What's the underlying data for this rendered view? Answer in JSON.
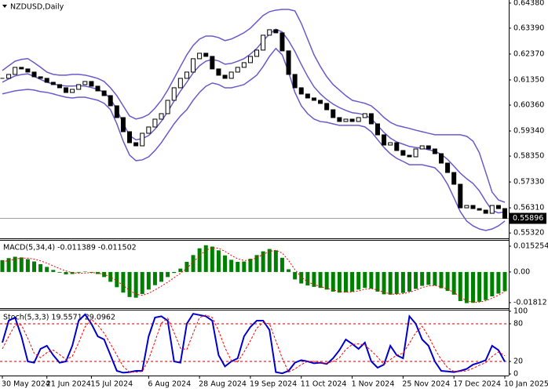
{
  "chart_data": [
    {
      "type": "candlestick",
      "title": "NZDUSD,Daily",
      "categories": [
        "30 May 2024",
        null,
        null,
        null,
        null,
        null,
        null,
        "21 Jun 2024",
        null,
        null,
        null,
        null,
        null,
        null,
        "15 Jul 2024",
        null,
        null,
        null,
        null,
        null,
        null,
        null,
        null,
        "6 Aug 2024",
        null,
        null,
        null,
        null,
        null,
        null,
        null,
        "28 Aug 2024",
        null,
        null,
        null,
        null,
        null,
        null,
        null,
        "19 Sep 2024",
        null,
        null,
        null,
        null,
        null,
        null,
        null,
        "11 Oct 2024",
        null,
        null,
        null,
        null,
        null,
        null,
        null,
        "1 Nov 2024",
        null,
        null,
        null,
        null,
        null,
        null,
        null,
        "25 Nov 2024",
        null,
        null,
        null,
        null,
        null,
        null,
        null,
        "17 Dec 2024",
        null,
        null,
        null,
        null,
        null,
        null,
        null,
        "10 Jan 2025"
      ],
      "close": [
        0.61413,
        0.61567,
        0.61846,
        0.61784,
        0.6166,
        0.61475,
        0.61413,
        0.61258,
        0.61166,
        0.61042,
        0.60856,
        0.6098,
        0.61166,
        0.61289,
        0.61104,
        0.60918,
        0.60733,
        0.60331,
        0.59867,
        0.59311,
        0.58878,
        0.58754,
        0.59249,
        0.59496,
        0.59805,
        0.60022,
        0.60547,
        0.61042,
        0.61413,
        0.6166,
        0.62186,
        0.62402,
        0.62278,
        0.61784,
        0.61536,
        0.61413,
        0.6166,
        0.61846,
        0.62031,
        0.62278,
        0.62526,
        0.63113,
        0.63329,
        0.63206,
        0.62495,
        0.61567,
        0.61042,
        0.60795,
        0.6064,
        0.60547,
        0.60424,
        0.60176,
        0.59867,
        0.59713,
        0.59805,
        0.59713,
        0.59867,
        0.60022,
        0.5962,
        0.59187,
        0.58785,
        0.58878,
        0.58569,
        0.58383,
        0.58322,
        0.58631,
        0.58754,
        0.58631,
        0.58445,
        0.58074,
        0.57703,
        0.5724,
        0.56312,
        0.56405,
        0.56281,
        0.5622,
        0.56096,
        0.56405,
        0.56281,
        0.55896
      ],
      "up_color": "#ffffff",
      "down_color": "#000000",
      "bands": {
        "color": "#6a5acd",
        "upper": [
          0.6172,
          0.6191,
          0.6209,
          0.6216,
          0.6219,
          0.6203,
          0.6185,
          0.6166,
          0.6157,
          0.6154,
          0.6154,
          0.6157,
          0.6157,
          0.6154,
          0.6148,
          0.6141,
          0.6129,
          0.6104,
          0.6073,
          0.6033,
          0.5993,
          0.5981,
          0.5987,
          0.5999,
          0.6024,
          0.6055,
          0.6095,
          0.6141,
          0.6188,
          0.6234,
          0.6271,
          0.6296,
          0.6308,
          0.6308,
          0.6302,
          0.629,
          0.6296,
          0.6308,
          0.6321,
          0.6339,
          0.6364,
          0.6389,
          0.6404,
          0.641,
          0.6413,
          0.6413,
          0.6407,
          0.6358,
          0.6296,
          0.6234,
          0.6188,
          0.6148,
          0.6117,
          0.6095,
          0.6073,
          0.6055,
          0.6049,
          0.6043,
          0.6033,
          0.6012,
          0.5987,
          0.5968,
          0.5956,
          0.595,
          0.5944,
          0.5937,
          0.5931,
          0.5925,
          0.5919,
          0.5919,
          0.5919,
          0.5919,
          0.5919,
          0.5913,
          0.5894,
          0.5848,
          0.5771,
          0.5693,
          0.5662,
          0.5653
        ],
        "middle": [
          0.6126,
          0.6139,
          0.6151,
          0.6156,
          0.6159,
          0.6149,
          0.6137,
          0.6126,
          0.6119,
          0.6114,
          0.6111,
          0.6111,
          0.6112,
          0.6111,
          0.6105,
          0.6098,
          0.6086,
          0.6061,
          0.6018,
          0.5964,
          0.5916,
          0.5899,
          0.5904,
          0.5916,
          0.5941,
          0.5972,
          0.601,
          0.6052,
          0.6091,
          0.6126,
          0.6163,
          0.6191,
          0.6209,
          0.6216,
          0.621,
          0.6197,
          0.62,
          0.6209,
          0.6219,
          0.6237,
          0.6259,
          0.6289,
          0.6316,
          0.6335,
          0.6324,
          0.629,
          0.6247,
          0.6196,
          0.6149,
          0.6108,
          0.608,
          0.6058,
          0.604,
          0.6026,
          0.6015,
          0.6006,
          0.6003,
          0.5997,
          0.5982,
          0.5956,
          0.5928,
          0.5906,
          0.5891,
          0.5882,
          0.5873,
          0.5869,
          0.5866,
          0.586,
          0.5854,
          0.5842,
          0.5822,
          0.5795,
          0.5768,
          0.5746,
          0.5727,
          0.5698,
          0.5657,
          0.5621,
          0.5611,
          0.5616
        ],
        "lower": [
          0.608,
          0.6086,
          0.6092,
          0.6095,
          0.6098,
          0.6095,
          0.6089,
          0.6086,
          0.608,
          0.6073,
          0.6067,
          0.6064,
          0.6067,
          0.6067,
          0.6061,
          0.6055,
          0.6043,
          0.6018,
          0.5962,
          0.5894,
          0.5839,
          0.5817,
          0.582,
          0.5832,
          0.5857,
          0.5888,
          0.5925,
          0.5962,
          0.5993,
          0.6018,
          0.6055,
          0.6086,
          0.611,
          0.6123,
          0.6117,
          0.6104,
          0.6104,
          0.611,
          0.6117,
          0.6135,
          0.6154,
          0.6188,
          0.6228,
          0.6259,
          0.6234,
          0.6166,
          0.6086,
          0.6033,
          0.6002,
          0.5981,
          0.5971,
          0.5968,
          0.5962,
          0.5956,
          0.5956,
          0.5956,
          0.5956,
          0.595,
          0.5931,
          0.59,
          0.5869,
          0.5844,
          0.5826,
          0.5814,
          0.5801,
          0.5801,
          0.5801,
          0.5795,
          0.5789,
          0.5764,
          0.5724,
          0.5671,
          0.5616,
          0.5579,
          0.556,
          0.5548,
          0.5542,
          0.5548,
          0.556,
          0.5579
        ]
      },
      "last_price": 0.55896,
      "ylim": [
        0.5514,
        0.645
      ],
      "yticks": [
        {
          "value": 0.6438,
          "label": "0.64380"
        },
        {
          "value": 0.6339,
          "label": "0.63390"
        },
        {
          "value": 0.6237,
          "label": "0.62370"
        },
        {
          "value": 0.6135,
          "label": "0.61350"
        },
        {
          "value": 0.6036,
          "label": "0.60360"
        },
        {
          "value": 0.5934,
          "label": "0.59340"
        },
        {
          "value": 0.5835,
          "label": "0.58350"
        },
        {
          "value": 0.5733,
          "label": "0.57330"
        },
        {
          "value": 0.5631,
          "label": "0.56310"
        },
        {
          "value": 0.5532,
          "label": "0.55320"
        }
      ]
    },
    {
      "type": "macd",
      "title": "MACD(5,34,4) -0.011389 -0.011502",
      "histogram": {
        "color": "#008000",
        "values": [
          0.007,
          0.0082,
          0.009,
          0.0086,
          0.0076,
          0.0062,
          0.0046,
          0.003,
          0.0012,
          -0.0004,
          -0.0014,
          -0.0012,
          -0.0004,
          0.0002,
          -0.0004,
          -0.0012,
          -0.003,
          -0.0058,
          -0.009,
          -0.0122,
          -0.0148,
          -0.0152,
          -0.013,
          -0.0104,
          -0.0078,
          -0.0058,
          -0.003,
          -0.0006,
          0.002,
          0.006,
          0.01,
          0.014,
          0.0158,
          0.015,
          0.0128,
          0.0098,
          0.0072,
          0.006,
          0.0062,
          0.0078,
          0.01,
          0.0122,
          0.0136,
          0.0128,
          0.0084,
          0.0016,
          -0.0044,
          -0.0068,
          -0.008,
          -0.0088,
          -0.0094,
          -0.0104,
          -0.0116,
          -0.0122,
          -0.012,
          -0.0116,
          -0.0104,
          -0.0094,
          -0.0098,
          -0.0116,
          -0.0132,
          -0.0134,
          -0.013,
          -0.0124,
          -0.0116,
          -0.01,
          -0.0082,
          -0.0076,
          -0.008,
          -0.0096,
          -0.0112,
          -0.0134,
          -0.0172,
          -0.0184,
          -0.0182,
          -0.0176,
          -0.0166,
          -0.0144,
          -0.0128,
          -0.011389
        ]
      },
      "signal": {
        "color": "#ff0000",
        "values": [
          0.006,
          0.0068,
          0.0076,
          0.0082,
          0.0082,
          0.0076,
          0.0066,
          0.0052,
          0.0036,
          0.002,
          0.0006,
          -0.0004,
          -0.0008,
          -0.0006,
          -0.0004,
          -0.0006,
          -0.0014,
          -0.003,
          -0.0052,
          -0.008,
          -0.0108,
          -0.0132,
          -0.0138,
          -0.0126,
          -0.0106,
          -0.0084,
          -0.006,
          -0.0034,
          -0.0008,
          0.0022,
          0.0058,
          0.0096,
          0.0128,
          0.0144,
          0.014,
          0.0122,
          0.0098,
          0.0078,
          0.0068,
          0.007,
          0.0084,
          0.0104,
          0.0122,
          0.0128,
          0.0112,
          0.0068,
          0.0014,
          -0.003,
          -0.0058,
          -0.0074,
          -0.0086,
          -0.0096,
          -0.0106,
          -0.0116,
          -0.012,
          -0.0118,
          -0.0112,
          -0.0102,
          -0.0098,
          -0.0106,
          -0.012,
          -0.013,
          -0.0132,
          -0.0128,
          -0.012,
          -0.0108,
          -0.0092,
          -0.0082,
          -0.008,
          -0.0088,
          -0.0102,
          -0.012,
          -0.0148,
          -0.017,
          -0.018,
          -0.0178,
          -0.017,
          -0.0155,
          -0.0138,
          -0.011502
        ]
      },
      "ylim": [
        -0.0209,
        0.0185
      ],
      "yticks": [
        0.015254,
        {
          "value": 0,
          "label": "0.00"
        },
        -0.018121
      ]
    },
    {
      "type": "line",
      "title": "Stoch(5,3,3) 19.5571 29.0962",
      "series": [
        {
          "color": "#0000cd",
          "values": [
            50,
            85,
            90,
            60,
            20,
            18,
            40,
            45,
            30,
            18,
            20,
            45,
            85,
            95,
            80,
            60,
            55,
            30,
            5,
            2,
            3,
            5,
            5,
            60,
            90,
            92,
            85,
            20,
            18,
            80,
            96,
            94,
            92,
            85,
            30,
            12,
            20,
            25,
            60,
            75,
            85,
            85,
            70,
            3,
            1,
            5,
            18,
            22,
            20,
            17,
            18,
            16,
            25,
            38,
            55,
            48,
            40,
            50,
            20,
            10,
            15,
            45,
            30,
            25,
            92,
            80,
            55,
            45,
            20,
            5,
            4,
            3,
            5,
            8,
            15,
            18,
            22,
            45,
            38,
            19.5571
          ]
        },
        {
          "color": "#ff0000",
          "dashed": true,
          "values": [
            40,
            60,
            78,
            78,
            57,
            33,
            26,
            34,
            38,
            31,
            23,
            28,
            50,
            75,
            87,
            78,
            65,
            48,
            30,
            12,
            3,
            3,
            4,
            23,
            52,
            81,
            89,
            66,
            41,
            39,
            65,
            90,
            94,
            90,
            69,
            42,
            21,
            19,
            35,
            53,
            73,
            82,
            80,
            53,
            25,
            3,
            8,
            15,
            20,
            20,
            18,
            17,
            20,
            26,
            39,
            47,
            48,
            46,
            37,
            27,
            15,
            23,
            30,
            33,
            49,
            66,
            76,
            60,
            40,
            23,
            10,
            4,
            4,
            5,
            9,
            14,
            18,
            28,
            35,
            29.0962
          ]
        }
      ],
      "levels": [
        80,
        20
      ],
      "ylim": [
        0,
        100
      ],
      "yticks": [
        100,
        80,
        20,
        0
      ]
    }
  ]
}
